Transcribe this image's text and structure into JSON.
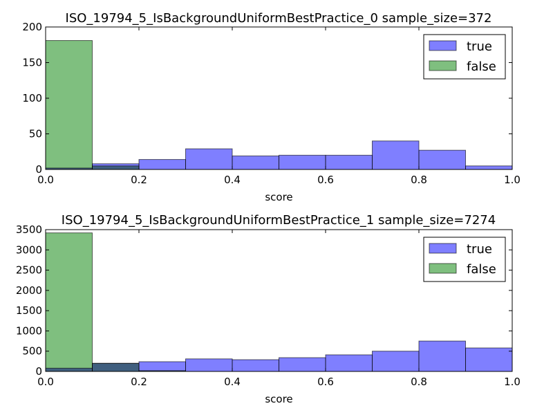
{
  "colors": {
    "true": "#7f7fff",
    "false": "#7fbf7f",
    "overlap": "#3f8080"
  },
  "chart_data": [
    {
      "type": "bar",
      "title": "ISO_19794_5_IsBackgroundUniformBestPractice_0 sample_size=372",
      "xlabel": "score",
      "ylabel": "",
      "xlim": [
        0.0,
        1.0
      ],
      "ylim": [
        0,
        200
      ],
      "xticks": [
        "0.0",
        "0.2",
        "0.4",
        "0.6",
        "0.8",
        "1.0"
      ],
      "yticks": [
        "0",
        "50",
        "100",
        "150",
        "200"
      ],
      "bin_edges": [
        0.0,
        0.1,
        0.2,
        0.3,
        0.4,
        0.5,
        0.6,
        0.7,
        0.8,
        0.9,
        1.0
      ],
      "legend_position": "upper-right",
      "series": [
        {
          "name": "true",
          "values": [
            2,
            8,
            14,
            29,
            19,
            20,
            20,
            40,
            27,
            5
          ]
        },
        {
          "name": "false",
          "values": [
            181,
            5,
            0,
            0,
            0,
            0,
            0,
            0,
            0,
            0
          ]
        }
      ]
    },
    {
      "type": "bar",
      "title": "ISO_19794_5_IsBackgroundUniformBestPractice_1 sample_size=7274",
      "xlabel": "score",
      "ylabel": "",
      "xlim": [
        0.0,
        1.0
      ],
      "ylim": [
        0,
        3500
      ],
      "xticks": [
        "0.0",
        "0.2",
        "0.4",
        "0.6",
        "0.8",
        "1.0"
      ],
      "yticks": [
        "0",
        "500",
        "1000",
        "1500",
        "2000",
        "2500",
        "3000",
        "3500"
      ],
      "bin_edges": [
        0.0,
        0.1,
        0.2,
        0.3,
        0.4,
        0.5,
        0.6,
        0.7,
        0.8,
        0.9,
        1.0
      ],
      "legend_position": "upper-right",
      "series": [
        {
          "name": "true",
          "values": [
            80,
            200,
            240,
            310,
            290,
            340,
            410,
            500,
            750,
            580
          ]
        },
        {
          "name": "false",
          "values": [
            3420,
            200,
            20,
            0,
            0,
            0,
            0,
            0,
            0,
            0
          ]
        }
      ]
    }
  ]
}
